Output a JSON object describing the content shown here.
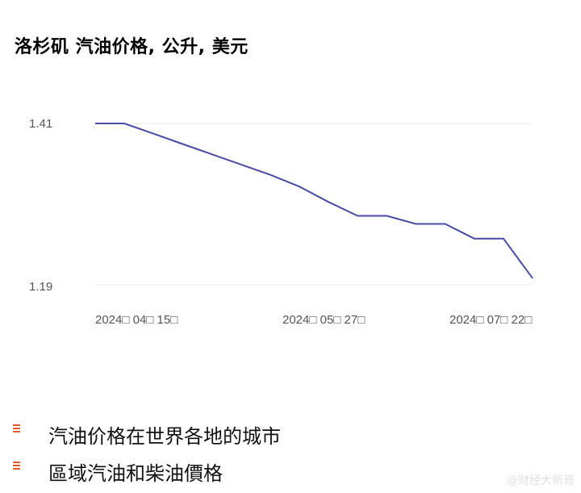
{
  "chart_data": {
    "type": "line",
    "title": "洛杉矶 汽油价格, 公升, 美元",
    "x": [
      "2024-04-08",
      "2024-04-15",
      "2024-04-22",
      "2024-04-29",
      "2024-05-06",
      "2024-05-13",
      "2024-05-20",
      "2024-05-27",
      "2024-06-03",
      "2024-06-10",
      "2024-06-17",
      "2024-06-24",
      "2024-07-01",
      "2024-07-08",
      "2024-07-15",
      "2024-07-22"
    ],
    "values": [
      1.41,
      1.41,
      1.396,
      1.382,
      1.368,
      1.354,
      1.34,
      1.324,
      1.303,
      1.284,
      1.284,
      1.273,
      1.273,
      1.253,
      1.253,
      1.199
    ],
    "yticks": [
      "1.41",
      "1.19"
    ],
    "xticks": [
      "2024□ 04□ 15□",
      "2024□ 05□ 27□",
      "2024□ 07□ 22□"
    ],
    "ylim": [
      1.19,
      1.41
    ],
    "grid": true,
    "line_color": "#4b4ba6"
  },
  "links": [
    {
      "label": "汽油价格在世界各地的城市"
    },
    {
      "label": "區域汽油和柴油價格"
    }
  ],
  "watermark": "@财经大新哥"
}
